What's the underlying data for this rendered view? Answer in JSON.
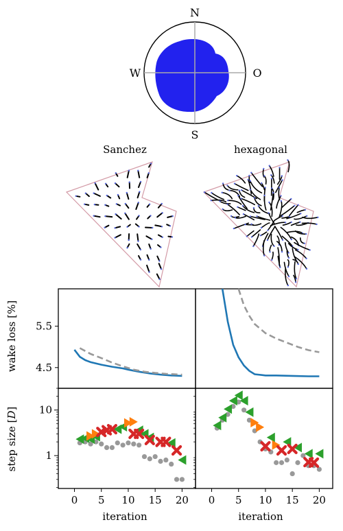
{
  "colors": {
    "wind_blob": "#2222ee",
    "layout_main": "#1f77b4",
    "layout_ref": "#999999",
    "green": "#2ca02c",
    "orange": "#ff7f0e",
    "red": "#d62728",
    "gray": "#999999",
    "track": "#000000",
    "boundary": "#d39aa6"
  },
  "compass": {
    "n": "N",
    "s": "S",
    "w": "W",
    "e": "O"
  },
  "layouts": {
    "left_title": "Sanchez",
    "right_title": "hexagonal"
  },
  "chart_data": [
    {
      "type": "line",
      "panel": "wake-loss-left",
      "ylabel": "wake loss [%]",
      "ylim": [
        4.0,
        6.4
      ],
      "xlim": [
        -3,
        22.5
      ],
      "yticks": [
        "4.5",
        "5.5"
      ],
      "series": [
        {
          "style": "solid-blue",
          "x": [
            0,
            1,
            2,
            3,
            5,
            7,
            9,
            10,
            12,
            14,
            16,
            18,
            20
          ],
          "y": [
            4.93,
            4.76,
            4.68,
            4.63,
            4.57,
            4.52,
            4.48,
            4.45,
            4.4,
            4.36,
            4.33,
            4.31,
            4.3
          ]
        },
        {
          "style": "dashed-gray",
          "x": [
            1,
            3,
            5,
            7,
            9,
            11,
            13,
            15,
            17,
            20
          ],
          "y": [
            4.97,
            4.83,
            4.73,
            4.62,
            4.53,
            4.45,
            4.4,
            4.37,
            4.35,
            4.33
          ]
        }
      ]
    },
    {
      "type": "line",
      "panel": "wake-loss-right",
      "ylim": [
        4.0,
        6.4
      ],
      "xlim": [
        -3,
        22.5
      ],
      "series": [
        {
          "style": "solid-blue",
          "x": [
            2,
            3,
            4,
            5,
            6,
            7,
            8,
            10,
            12,
            15,
            18,
            20
          ],
          "y": [
            6.4,
            5.6,
            5.05,
            4.75,
            4.55,
            4.42,
            4.34,
            4.31,
            4.31,
            4.3,
            4.29,
            4.29
          ]
        },
        {
          "style": "dashed-gray",
          "x": [
            5,
            6,
            7,
            8,
            10,
            12,
            14,
            16,
            18,
            20
          ],
          "y": [
            6.4,
            6.0,
            5.75,
            5.55,
            5.33,
            5.2,
            5.1,
            5.0,
            4.92,
            4.87
          ]
        }
      ]
    },
    {
      "type": "scatter",
      "panel": "step-size-left",
      "xlabel": "iteration",
      "ylabel": "step size [D]",
      "yscale": "log",
      "ylim": [
        0.19,
        30
      ],
      "xlim": [
        -3,
        22.5
      ],
      "yticks": [
        "1",
        "10"
      ],
      "xticks": [
        "0",
        "5",
        "10",
        "15",
        "20"
      ],
      "series": [
        {
          "marker": "circle-gray",
          "x": [
            1,
            2,
            3,
            4,
            5,
            6,
            7,
            8,
            9,
            10,
            11,
            12,
            13,
            14,
            15,
            16,
            17,
            18,
            19,
            20
          ],
          "y": [
            1.9,
            2.0,
            1.8,
            2.0,
            1.8,
            1.5,
            1.5,
            1.9,
            1.7,
            1.9,
            1.8,
            1.7,
            0.95,
            0.85,
            0.95,
            0.75,
            0.8,
            0.65,
            0.3,
            0.3
          ]
        },
        {
          "marker": "triangle-left-green",
          "x": [
            1,
            2,
            3,
            4,
            8,
            9,
            12,
            13,
            14,
            18,
            20
          ],
          "y": [
            2.3,
            2.4,
            2.3,
            2.6,
            3.8,
            4.3,
            3.6,
            3.0,
            2.5,
            1.9,
            0.8
          ]
        },
        {
          "marker": "triangle-right-orange",
          "x": [
            3,
            4,
            10,
            11
          ],
          "y": [
            2.7,
            3.0,
            5.2,
            5.5
          ]
        },
        {
          "marker": "x-red",
          "x": [
            5,
            6,
            7,
            11,
            12,
            14,
            16,
            17,
            19
          ],
          "y": [
            3.3,
            3.6,
            3.8,
            3.0,
            3.0,
            2.2,
            2.0,
            2.0,
            1.3
          ]
        }
      ]
    },
    {
      "type": "scatter",
      "panel": "step-size-right",
      "xlabel": "iteration",
      "yscale": "log",
      "ylim": [
        0.19,
        30
      ],
      "xlim": [
        -3,
        22.5
      ],
      "xticks": [
        "0",
        "5",
        "10",
        "15",
        "20"
      ],
      "series": [
        {
          "marker": "circle-gray",
          "x": [
            1,
            2,
            3,
            4,
            5,
            6,
            7,
            8,
            9,
            10,
            11,
            12,
            13,
            14,
            15,
            16,
            17,
            18,
            19,
            20
          ],
          "y": [
            4.0,
            6.0,
            8.0,
            12.0,
            15.0,
            10.0,
            6.0,
            3.5,
            2.0,
            1.4,
            1.2,
            0.7,
            0.7,
            0.8,
            0.4,
            0.7,
            1.0,
            0.6,
            0.6,
            0.5
          ]
        },
        {
          "marker": "triangle-left-green",
          "x": [
            1,
            2,
            3,
            4,
            5,
            6,
            7,
            11,
            14,
            16,
            18,
            20
          ],
          "y": [
            4.6,
            6.8,
            10.5,
            16.0,
            21.0,
            16.0,
            9.0,
            2.5,
            2.0,
            1.5,
            1.1,
            1.1
          ]
        },
        {
          "marker": "triangle-right-orange",
          "x": [
            8,
            9,
            12
          ],
          "y": [
            5.3,
            4.2,
            1.7
          ]
        },
        {
          "marker": "x-red",
          "x": [
            10,
            13,
            15,
            18,
            19
          ],
          "y": [
            1.6,
            1.3,
            1.4,
            0.72,
            0.7
          ]
        }
      ]
    }
  ]
}
